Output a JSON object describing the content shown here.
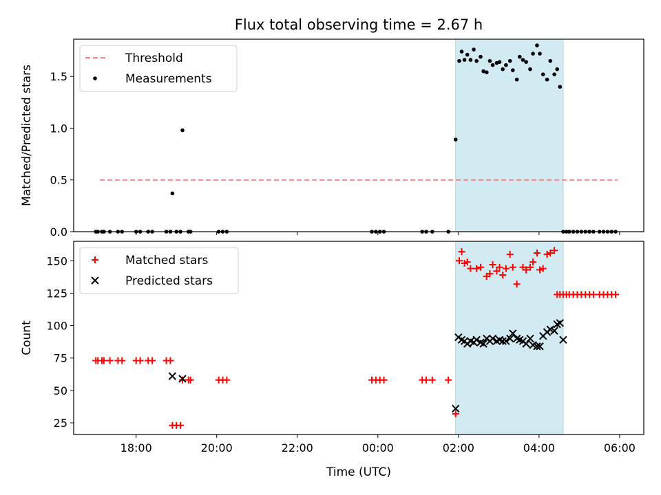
{
  "figure_title": "Flux total observing time = 2.67 h",
  "colors": {
    "threshold": "#ff7f7f",
    "span": "#add8e6",
    "matched": "#ff0000",
    "predicted": "#000000",
    "measure": "#000000"
  },
  "chart_data": [
    {
      "type": "scatter",
      "title": "Flux total observing time = 2.67 h",
      "xlabel": "",
      "ylabel": "Matched/Predicted stars",
      "xlim": [
        16.45,
        30.6
      ],
      "ylim": [
        0,
        1.86
      ],
      "yticks": [
        0,
        0.5,
        1,
        1.5
      ],
      "ytick_labels": [
        "0.0",
        "0.5",
        "1.0",
        "1.5"
      ],
      "xticks": [
        18,
        20,
        22,
        24,
        26,
        28,
        30
      ],
      "shaded_span": [
        25.93,
        28.6
      ],
      "legend": {
        "position": "top-left",
        "entries": [
          "Threshold",
          "Measurements"
        ]
      },
      "series": [
        {
          "name": "Threshold",
          "kind": "line",
          "x": [
            17.1,
            29.95
          ],
          "y": [
            0.5,
            0.5
          ]
        },
        {
          "name": "Measurements",
          "kind": "scatter",
          "x": [
            17.0,
            17.05,
            17.15,
            17.2,
            17.35,
            17.55,
            17.65,
            18.0,
            18.1,
            18.3,
            18.4,
            18.75,
            18.85,
            18.9,
            19.0,
            19.1,
            19.15,
            19.3,
            19.35,
            20.05,
            20.15,
            20.25,
            23.85,
            23.95,
            24.05,
            24.15,
            25.1,
            25.2,
            25.35,
            25.75,
            25.93,
            26.02,
            26.08,
            26.15,
            26.22,
            26.3,
            26.38,
            26.45,
            26.55,
            26.62,
            26.7,
            26.78,
            26.85,
            26.95,
            27.02,
            27.1,
            27.18,
            27.28,
            27.35,
            27.45,
            27.52,
            27.6,
            27.68,
            27.78,
            27.85,
            27.95,
            28.02,
            28.1,
            28.2,
            28.28,
            28.38,
            28.45,
            28.52,
            28.6,
            28.68,
            28.75,
            28.85,
            28.95,
            29.05,
            29.15,
            29.25,
            29.35,
            29.5,
            29.6,
            29.7,
            29.8,
            29.9
          ],
          "y": [
            0,
            0,
            0,
            0,
            0,
            0,
            0,
            0,
            0,
            0,
            0,
            0,
            0,
            0.37,
            0,
            0,
            0.98,
            0,
            0,
            0,
            0,
            0,
            0,
            0,
            0,
            0,
            0,
            0,
            0,
            0,
            0.89,
            1.65,
            1.74,
            1.66,
            1.71,
            1.66,
            1.76,
            1.65,
            1.69,
            1.55,
            1.54,
            1.65,
            1.61,
            1.63,
            1.64,
            1.57,
            1.61,
            1.65,
            1.56,
            1.47,
            1.69,
            1.66,
            1.64,
            1.57,
            1.72,
            1.8,
            1.72,
            1.52,
            1.47,
            1.65,
            1.52,
            1.57,
            1.4,
            0,
            0,
            0,
            0,
            0,
            0,
            0,
            0,
            0,
            0,
            0,
            0,
            0,
            0
          ]
        }
      ]
    },
    {
      "type": "scatter",
      "title": "",
      "xlabel": "Time (UTC)",
      "ylabel": "Count",
      "xlim": [
        16.45,
        30.6
      ],
      "ylim": [
        16,
        165
      ],
      "yticks": [
        25,
        50,
        75,
        100,
        125,
        150
      ],
      "ytick_labels": [
        "25",
        "50",
        "75",
        "100",
        "125",
        "150"
      ],
      "xticks": [
        18,
        20,
        22,
        24,
        26,
        28,
        30
      ],
      "xtick_labels": [
        "18:00",
        "20:00",
        "22:00",
        "00:00",
        "02:00",
        "04:00",
        "06:00"
      ],
      "shaded_span": [
        25.93,
        28.6
      ],
      "legend": {
        "position": "top-left",
        "entries": [
          "Matched stars",
          "Predicted stars"
        ]
      },
      "series": [
        {
          "name": "Matched stars",
          "marker": "+",
          "x": [
            17.0,
            17.05,
            17.15,
            17.2,
            17.35,
            17.55,
            17.65,
            18.0,
            18.1,
            18.3,
            18.4,
            18.75,
            18.85,
            18.9,
            19.0,
            19.1,
            19.15,
            19.3,
            19.35,
            20.05,
            20.15,
            20.25,
            23.85,
            23.95,
            24.05,
            24.15,
            25.1,
            25.2,
            25.35,
            25.75,
            25.93,
            26.02,
            26.08,
            26.15,
            26.22,
            26.3,
            26.45,
            26.55,
            26.7,
            26.78,
            26.85,
            26.95,
            27.02,
            27.1,
            27.18,
            27.28,
            27.35,
            27.45,
            27.6,
            27.68,
            27.78,
            27.85,
            27.95,
            28.02,
            28.1,
            28.2,
            28.28,
            28.38,
            28.45,
            28.52,
            28.6,
            28.68,
            28.75,
            28.85,
            28.95,
            29.05,
            29.15,
            29.25,
            29.35,
            29.5,
            29.6,
            29.7,
            29.8,
            29.9
          ],
          "y": [
            73,
            73,
            73,
            73,
            73,
            73,
            73,
            73,
            73,
            73,
            73,
            73,
            73,
            23,
            23,
            23,
            58,
            58,
            58,
            58,
            58,
            58,
            58,
            58,
            58,
            58,
            58,
            58,
            58,
            58,
            32,
            150,
            157,
            148,
            149,
            144,
            144,
            145,
            138,
            140,
            147,
            142,
            145,
            139,
            144,
            155,
            145,
            132,
            145,
            143,
            145,
            149,
            156,
            143,
            144,
            155,
            156,
            158,
            124,
            124,
            124,
            124,
            124,
            124,
            124,
            124,
            124,
            124,
            124,
            124,
            124,
            124,
            124,
            124
          ]
        },
        {
          "name": "Predicted stars",
          "marker": "x",
          "x": [
            18.9,
            19.15,
            25.93,
            26.0,
            26.08,
            26.15,
            26.22,
            26.3,
            26.38,
            26.45,
            26.55,
            26.62,
            26.7,
            26.78,
            26.85,
            26.95,
            27.02,
            27.1,
            27.18,
            27.28,
            27.35,
            27.45,
            27.52,
            27.6,
            27.68,
            27.78,
            27.85,
            27.95,
            28.02,
            28.1,
            28.2,
            28.28,
            28.38,
            28.45,
            28.52,
            28.6
          ],
          "y": [
            61,
            59,
            36,
            91,
            89,
            88,
            86,
            88,
            87,
            89,
            87,
            86,
            90,
            88,
            90,
            88,
            89,
            88,
            88,
            90,
            94,
            90,
            89,
            88,
            86,
            90,
            85,
            84,
            84,
            92,
            95,
            97,
            96,
            101,
            102,
            89
          ]
        }
      ]
    }
  ]
}
